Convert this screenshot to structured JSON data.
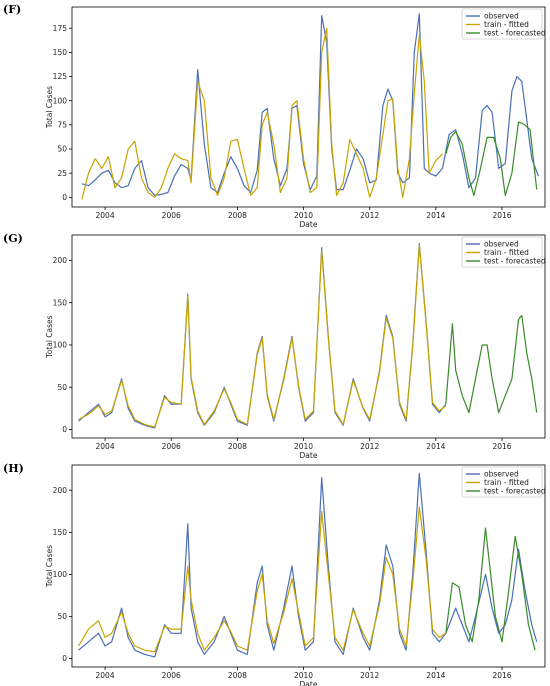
{
  "chart_data": [
    {
      "panel_label": "(F)",
      "type": "line",
      "xlabel": "Date",
      "ylabel": "Total Cases",
      "xlim": [
        2003.0,
        2017.3
      ],
      "ylim": [
        -10,
        197
      ],
      "x_ticks": [
        2004,
        2006,
        2008,
        2010,
        2012,
        2014,
        2016
      ],
      "x_tick_labels": [
        "2004",
        "2006",
        "2008",
        "2010",
        "2012",
        "2014",
        "2016"
      ],
      "y_ticks": [
        0,
        25,
        50,
        75,
        100,
        125,
        150,
        175
      ],
      "y_tick_labels": [
        "0",
        "25",
        "50",
        "75",
        "100",
        "125",
        "150",
        "175"
      ],
      "legend_position": "top-right",
      "legend": [
        "observed",
        "train - fitted",
        "test - forecasted"
      ],
      "grid": false,
      "series": [
        {
          "name": "observed",
          "color": "#4a6fb5",
          "x": [
            2003.3,
            2003.5,
            2003.7,
            2003.9,
            2004.1,
            2004.3,
            2004.5,
            2004.7,
            2004.9,
            2005.1,
            2005.3,
            2005.5,
            2005.7,
            2005.9,
            2006.1,
            2006.3,
            2006.5,
            2006.6,
            2006.8,
            2007.0,
            2007.2,
            2007.4,
            2007.6,
            2007.8,
            2008.0,
            2008.2,
            2008.4,
            2008.6,
            2008.75,
            2008.9,
            2009.1,
            2009.3,
            2009.5,
            2009.65,
            2009.8,
            2010.0,
            2010.2,
            2010.4,
            2010.55,
            2010.7,
            2010.85,
            2011.0,
            2011.2,
            2011.4,
            2011.6,
            2011.8,
            2012.0,
            2012.2,
            2012.4,
            2012.55,
            2012.7,
            2012.85,
            2013.0,
            2013.2,
            2013.35,
            2013.5,
            2013.65,
            2013.8,
            2014.0,
            2014.2,
            2014.4,
            2014.6,
            2014.8,
            2015.0,
            2015.2,
            2015.4,
            2015.55,
            2015.7,
            2015.9,
            2016.1,
            2016.3,
            2016.45,
            2016.6,
            2016.75,
            2016.9,
            2017.1
          ],
          "values": [
            14,
            12,
            18,
            25,
            28,
            15,
            10,
            12,
            30,
            38,
            10,
            2,
            3,
            5,
            22,
            34,
            30,
            18,
            132,
            55,
            10,
            5,
            25,
            42,
            30,
            12,
            5,
            28,
            88,
            92,
            40,
            12,
            30,
            92,
            95,
            35,
            8,
            22,
            188,
            160,
            50,
            8,
            8,
            28,
            50,
            40,
            15,
            18,
            95,
            112,
            100,
            25,
            15,
            20,
            150,
            190,
            30,
            25,
            22,
            30,
            65,
            70,
            45,
            10,
            20,
            90,
            95,
            88,
            30,
            35,
            110,
            125,
            120,
            80,
            40,
            22
          ]
        },
        {
          "name": "train - fitted",
          "color": "#c8a400",
          "x": [
            2003.3,
            2003.5,
            2003.7,
            2003.9,
            2004.1,
            2004.3,
            2004.5,
            2004.7,
            2004.9,
            2005.1,
            2005.3,
            2005.5,
            2005.7,
            2005.9,
            2006.1,
            2006.3,
            2006.5,
            2006.6,
            2006.8,
            2007.0,
            2007.2,
            2007.4,
            2007.6,
            2007.8,
            2008.0,
            2008.2,
            2008.4,
            2008.6,
            2008.75,
            2008.9,
            2009.1,
            2009.3,
            2009.5,
            2009.65,
            2009.8,
            2010.0,
            2010.2,
            2010.4,
            2010.55,
            2010.7,
            2010.85,
            2011.0,
            2011.2,
            2011.4,
            2011.6,
            2011.8,
            2012.0,
            2012.2,
            2012.4,
            2012.55,
            2012.7,
            2012.85,
            2013.0,
            2013.2,
            2013.35,
            2013.5,
            2013.65,
            2013.8,
            2014.0,
            2014.2
          ],
          "values": [
            -2,
            25,
            40,
            30,
            42,
            10,
            20,
            50,
            58,
            20,
            5,
            0,
            10,
            30,
            45,
            40,
            38,
            15,
            120,
            100,
            20,
            2,
            20,
            58,
            60,
            30,
            2,
            10,
            75,
            88,
            55,
            5,
            20,
            95,
            100,
            40,
            5,
            10,
            150,
            175,
            55,
            2,
            15,
            60,
            45,
            30,
            0,
            20,
            65,
            100,
            102,
            30,
            0,
            40,
            108,
            168,
            120,
            25,
            38,
            45
          ]
        },
        {
          "name": "test - forecasted",
          "color": "#3a8a2a",
          "x": [
            2014.3,
            2014.45,
            2014.6,
            2014.8,
            2015.0,
            2015.15,
            2015.35,
            2015.55,
            2015.75,
            2015.95,
            2016.1,
            2016.3,
            2016.5,
            2016.65,
            2016.85,
            2017.05
          ],
          "values": [
            45,
            62,
            68,
            55,
            20,
            2,
            30,
            62,
            62,
            40,
            2,
            25,
            78,
            76,
            70,
            8
          ]
        }
      ]
    },
    {
      "panel_label": "(G)",
      "type": "line",
      "xlabel": "Date",
      "ylabel": "Total Cases",
      "xlim": [
        2003.0,
        2017.3
      ],
      "ylim": [
        -10,
        230
      ],
      "x_ticks": [
        2004,
        2006,
        2008,
        2010,
        2012,
        2014,
        2016
      ],
      "x_tick_labels": [
        "2004",
        "2006",
        "2008",
        "2010",
        "2012",
        "2014",
        "2016"
      ],
      "y_ticks": [
        0,
        50,
        100,
        150,
        200
      ],
      "y_tick_labels": [
        "0",
        "50",
        "100",
        "150",
        "200"
      ],
      "legend_position": "top-right",
      "legend": [
        "observed",
        "train - fitted",
        "test - forecasted"
      ],
      "grid": false,
      "series": [
        {
          "name": "observed",
          "color": "#4a6fb5",
          "x": [
            2003.2,
            2003.5,
            2003.8,
            2004.0,
            2004.2,
            2004.5,
            2004.7,
            2004.9,
            2005.2,
            2005.5,
            2005.8,
            2006.0,
            2006.3,
            2006.5,
            2006.6,
            2006.8,
            2007.0,
            2007.3,
            2007.6,
            2007.8,
            2008.0,
            2008.3,
            2008.6,
            2008.75,
            2008.9,
            2009.1,
            2009.4,
            2009.65,
            2009.85,
            2010.05,
            2010.3,
            2010.55,
            2010.75,
            2010.95,
            2011.2,
            2011.5,
            2011.8,
            2012.0,
            2012.3,
            2012.5,
            2012.7,
            2012.9,
            2013.1,
            2013.3,
            2013.5,
            2013.7,
            2013.9,
            2014.1,
            2014.3
          ],
          "values": [
            10,
            20,
            30,
            15,
            20,
            60,
            25,
            10,
            5,
            2,
            40,
            30,
            30,
            160,
            60,
            20,
            5,
            20,
            50,
            30,
            10,
            5,
            90,
            110,
            40,
            10,
            60,
            110,
            50,
            10,
            20,
            215,
            110,
            20,
            5,
            60,
            25,
            10,
            70,
            135,
            110,
            30,
            10,
            100,
            220,
            130,
            30,
            20,
            30
          ]
        },
        {
          "name": "train - fitted",
          "color": "#c8a400",
          "x": [
            2003.2,
            2003.5,
            2003.8,
            2004.0,
            2004.2,
            2004.5,
            2004.7,
            2004.9,
            2005.2,
            2005.5,
            2005.8,
            2006.0,
            2006.3,
            2006.5,
            2006.6,
            2006.8,
            2007.0,
            2007.3,
            2007.6,
            2007.8,
            2008.0,
            2008.3,
            2008.6,
            2008.75,
            2008.9,
            2009.1,
            2009.4,
            2009.65,
            2009.85,
            2010.05,
            2010.3,
            2010.55,
            2010.75,
            2010.95,
            2011.2,
            2011.5,
            2011.8,
            2012.0,
            2012.3,
            2012.5,
            2012.7,
            2012.9,
            2013.1,
            2013.3,
            2013.5,
            2013.7,
            2013.9,
            2014.1,
            2014.3
          ],
          "values": [
            12,
            18,
            28,
            18,
            22,
            58,
            28,
            12,
            6,
            3,
            38,
            32,
            30,
            158,
            62,
            22,
            6,
            22,
            48,
            32,
            12,
            6,
            88,
            108,
            42,
            12,
            58,
            108,
            52,
            12,
            22,
            212,
            108,
            22,
            6,
            58,
            26,
            12,
            68,
            132,
            108,
            32,
            12,
            98,
            218,
            128,
            32,
            22,
            28
          ]
        },
        {
          "name": "test - forecasted",
          "color": "#3a8a2a",
          "x": [
            2014.3,
            2014.5,
            2014.6,
            2014.8,
            2015.0,
            2015.2,
            2015.4,
            2015.55,
            2015.7,
            2015.9,
            2016.1,
            2016.3,
            2016.5,
            2016.6,
            2016.75,
            2016.9,
            2017.05
          ],
          "values": [
            30,
            125,
            70,
            40,
            20,
            60,
            100,
            100,
            60,
            20,
            40,
            60,
            130,
            135,
            90,
            60,
            20
          ]
        }
      ]
    },
    {
      "panel_label": "(H)",
      "type": "line",
      "xlabel": "Date",
      "ylabel": "Total Cases",
      "xlim": [
        2003.0,
        2017.3
      ],
      "ylim": [
        -10,
        230
      ],
      "x_ticks": [
        2004,
        2006,
        2008,
        2010,
        2012,
        2014,
        2016
      ],
      "x_tick_labels": [
        "2004",
        "2006",
        "2008",
        "2010",
        "2012",
        "2014",
        "2016"
      ],
      "y_ticks": [
        0,
        50,
        100,
        150,
        200
      ],
      "y_tick_labels": [
        "0",
        "50",
        "100",
        "150",
        "200"
      ],
      "legend_position": "top-right",
      "legend": [
        "observed",
        "train - fitted",
        "test - forecasted"
      ],
      "grid": false,
      "series": [
        {
          "name": "observed",
          "color": "#4a6fb5",
          "x": [
            2003.2,
            2003.5,
            2003.8,
            2004.0,
            2004.2,
            2004.5,
            2004.7,
            2004.9,
            2005.2,
            2005.5,
            2005.8,
            2006.0,
            2006.3,
            2006.5,
            2006.6,
            2006.8,
            2007.0,
            2007.3,
            2007.6,
            2007.8,
            2008.0,
            2008.3,
            2008.6,
            2008.75,
            2008.9,
            2009.1,
            2009.4,
            2009.65,
            2009.85,
            2010.05,
            2010.3,
            2010.55,
            2010.75,
            2010.95,
            2011.2,
            2011.5,
            2011.8,
            2012.0,
            2012.3,
            2012.5,
            2012.7,
            2012.9,
            2013.1,
            2013.3,
            2013.5,
            2013.7,
            2013.9,
            2014.1,
            2014.3,
            2014.6,
            2014.8,
            2015.0,
            2015.2,
            2015.5,
            2015.7,
            2015.9,
            2016.1,
            2016.3,
            2016.5,
            2016.7,
            2016.9,
            2017.05
          ],
          "values": [
            10,
            20,
            30,
            15,
            20,
            60,
            25,
            10,
            5,
            2,
            40,
            30,
            30,
            160,
            60,
            20,
            5,
            20,
            50,
            30,
            10,
            5,
            90,
            110,
            40,
            10,
            60,
            110,
            50,
            10,
            20,
            215,
            110,
            20,
            5,
            60,
            25,
            10,
            70,
            135,
            110,
            30,
            10,
            100,
            220,
            130,
            30,
            20,
            30,
            60,
            40,
            20,
            50,
            100,
            60,
            30,
            40,
            70,
            130,
            80,
            40,
            20
          ]
        },
        {
          "name": "train - fitted",
          "color": "#c8a400",
          "x": [
            2003.2,
            2003.5,
            2003.8,
            2004.0,
            2004.2,
            2004.5,
            2004.7,
            2004.9,
            2005.2,
            2005.5,
            2005.8,
            2006.0,
            2006.3,
            2006.5,
            2006.6,
            2006.8,
            2007.0,
            2007.3,
            2007.6,
            2007.8,
            2008.0,
            2008.3,
            2008.6,
            2008.75,
            2008.9,
            2009.1,
            2009.4,
            2009.65,
            2009.85,
            2010.05,
            2010.3,
            2010.55,
            2010.75,
            2010.95,
            2011.2,
            2011.5,
            2011.8,
            2012.0,
            2012.3,
            2012.5,
            2012.7,
            2012.9,
            2013.1,
            2013.3,
            2013.5,
            2013.7,
            2013.9,
            2014.1,
            2014.3
          ],
          "values": [
            15,
            35,
            45,
            25,
            30,
            55,
            30,
            15,
            10,
            8,
            38,
            35,
            35,
            110,
            70,
            30,
            10,
            25,
            45,
            32,
            15,
            10,
            80,
            100,
            45,
            18,
            55,
            95,
            55,
            15,
            25,
            175,
            100,
            25,
            10,
            58,
            30,
            15,
            65,
            120,
            100,
            35,
            15,
            90,
            180,
            120,
            35,
            25,
            30
          ]
        },
        {
          "name": "test - forecasted",
          "color": "#3a8a2a",
          "x": [
            2014.3,
            2014.5,
            2014.7,
            2014.9,
            2015.1,
            2015.3,
            2015.5,
            2015.6,
            2015.8,
            2016.0,
            2016.2,
            2016.4,
            2016.6,
            2016.8,
            2017.0
          ],
          "values": [
            30,
            90,
            85,
            40,
            20,
            70,
            155,
            120,
            50,
            20,
            80,
            145,
            100,
            40,
            10
          ]
        }
      ]
    }
  ]
}
